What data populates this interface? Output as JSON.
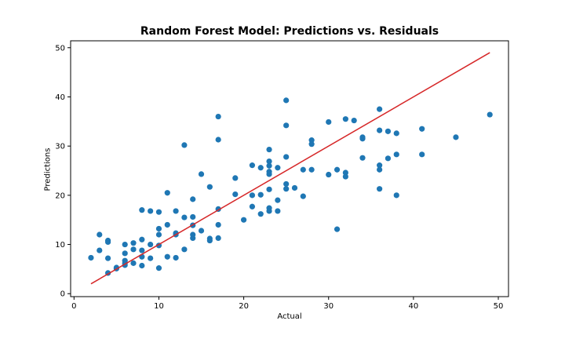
{
  "chart_data": {
    "type": "scatter",
    "title": "Random Forest Model: Predictions vs. Residuals",
    "xlabel": "Actual",
    "ylabel": "Predictions",
    "xlim": [
      -0.4,
      51.2
    ],
    "ylim": [
      -0.6,
      51.4
    ],
    "xticks": [
      0,
      10,
      20,
      30,
      40,
      50
    ],
    "yticks": [
      0,
      10,
      20,
      30,
      40,
      50
    ],
    "grid": false,
    "point_color": "#1f77b4",
    "line_color": "#d62728",
    "reference_line": {
      "x": [
        2,
        49
      ],
      "y": [
        2,
        49
      ]
    },
    "points": [
      [
        2,
        7.3
      ],
      [
        3,
        12.0
      ],
      [
        3,
        8.8
      ],
      [
        4,
        10.8
      ],
      [
        4,
        10.5
      ],
      [
        4,
        7.2
      ],
      [
        4,
        4.2
      ],
      [
        5,
        5.3
      ],
      [
        5,
        5.1
      ],
      [
        6,
        10.0
      ],
      [
        6,
        8.2
      ],
      [
        6,
        6.7
      ],
      [
        6,
        6.2
      ],
      [
        6,
        5.8
      ],
      [
        7,
        10.3
      ],
      [
        7,
        9.0
      ],
      [
        7,
        6.2
      ],
      [
        8,
        17.0
      ],
      [
        8,
        11.0
      ],
      [
        8,
        8.8
      ],
      [
        8,
        7.5
      ],
      [
        8,
        5.7
      ],
      [
        9,
        16.8
      ],
      [
        9,
        10.0
      ],
      [
        9,
        7.2
      ],
      [
        10,
        16.6
      ],
      [
        10,
        13.2
      ],
      [
        10,
        12.0
      ],
      [
        10,
        9.8
      ],
      [
        10,
        5.2
      ],
      [
        11,
        20.5
      ],
      [
        11,
        14.0
      ],
      [
        11,
        7.5
      ],
      [
        12,
        16.8
      ],
      [
        12,
        12.3
      ],
      [
        12,
        12.0
      ],
      [
        12,
        7.3
      ],
      [
        13,
        30.2
      ],
      [
        13,
        15.5
      ],
      [
        13,
        9.0
      ],
      [
        14,
        19.2
      ],
      [
        14,
        15.6
      ],
      [
        14,
        13.9
      ],
      [
        14,
        12.0
      ],
      [
        14,
        11.3
      ],
      [
        15,
        24.3
      ],
      [
        15,
        12.8
      ],
      [
        16,
        21.7
      ],
      [
        16,
        11.2
      ],
      [
        16,
        10.8
      ],
      [
        17,
        36.0
      ],
      [
        17,
        31.3
      ],
      [
        17,
        17.2
      ],
      [
        17,
        14.0
      ],
      [
        17,
        11.3
      ],
      [
        19,
        23.5
      ],
      [
        19,
        20.2
      ],
      [
        20,
        15.0
      ],
      [
        21,
        26.1
      ],
      [
        21,
        20.0
      ],
      [
        21,
        17.7
      ],
      [
        22,
        25.6
      ],
      [
        22,
        20.1
      ],
      [
        22,
        16.2
      ],
      [
        23,
        29.3
      ],
      [
        23,
        26.9
      ],
      [
        23,
        26.0
      ],
      [
        23,
        24.8
      ],
      [
        23,
        24.3
      ],
      [
        23,
        21.2
      ],
      [
        23,
        17.4
      ],
      [
        23,
        16.8
      ],
      [
        24,
        25.6
      ],
      [
        24,
        19.0
      ],
      [
        24,
        16.8
      ],
      [
        25,
        39.3
      ],
      [
        25,
        34.2
      ],
      [
        25,
        27.8
      ],
      [
        25,
        22.3
      ],
      [
        25,
        21.3
      ],
      [
        26,
        21.5
      ],
      [
        27,
        25.2
      ],
      [
        27,
        19.8
      ],
      [
        28,
        31.2
      ],
      [
        28,
        30.4
      ],
      [
        28,
        25.2
      ],
      [
        30,
        34.9
      ],
      [
        30,
        24.2
      ],
      [
        31,
        25.2
      ],
      [
        31,
        13.1
      ],
      [
        32,
        35.5
      ],
      [
        32,
        24.6
      ],
      [
        32,
        23.8
      ],
      [
        33,
        35.2
      ],
      [
        34,
        31.8
      ],
      [
        34,
        31.5
      ],
      [
        34,
        27.6
      ],
      [
        36,
        37.5
      ],
      [
        36,
        33.2
      ],
      [
        36,
        26.1
      ],
      [
        36,
        25.2
      ],
      [
        36,
        21.3
      ],
      [
        37,
        33.0
      ],
      [
        37,
        27.5
      ],
      [
        38,
        32.6
      ],
      [
        38,
        28.3
      ],
      [
        38,
        20.0
      ],
      [
        41,
        33.5
      ],
      [
        41,
        28.3
      ],
      [
        45,
        31.8
      ],
      [
        49,
        36.4
      ]
    ]
  }
}
